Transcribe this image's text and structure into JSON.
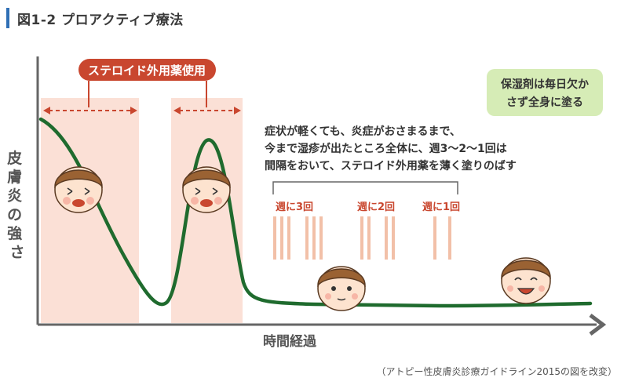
{
  "title": "図1-2 プロアクティブ療法",
  "badge_label": "ステロイド外用薬使用",
  "green_note": [
    "保湿剤は毎日欠か",
    "さず全身に塗る"
  ],
  "description": [
    "症状が軽くても、炎症がおさまるまで、",
    "今まで湿疹が出たところ全体に、週3〜2〜1回は",
    "間隔をおいて、ステロイド外用薬を薄く塗りのばす"
  ],
  "frequency_labels": [
    "週に3回",
    "週に2回",
    "週に1回"
  ],
  "y_axis_label": "皮膚炎の強さ",
  "x_axis_label": "時間経過",
  "source": "（アトピー性皮膚炎診療ガイドライン2015の図を改変）",
  "colors": {
    "title_accent": "#2f6fb5",
    "curve": "#1f6b2e",
    "steroid_zone": "#fbe0d6",
    "badge": "#c9472f",
    "note_bg": "#d6ecb6",
    "tally": "#f2c0a8",
    "axis": "#666666"
  }
}
